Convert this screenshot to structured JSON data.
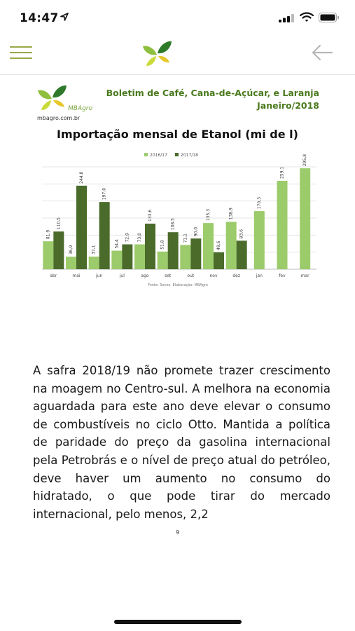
{
  "status_bar": {
    "time": "14:47"
  },
  "document": {
    "brand_name": "MBAgro",
    "brand_url": "mbagro.com.br",
    "title_line1": "Boletim de Café, Cana-de-Açúcar, e Laranja",
    "title_line2": "Janeiro/2018",
    "chart_title": "Importação mensal de Etanol (mi de l)",
    "source_note": "Fonte: Secex. Elaboração: MBAgro",
    "body_text": "A safra 2018/19 não promete trazer crescimento na moagem no Centro-sul. A melhora na economia aguardada para este ano deve elevar o consumo de combustíveis no ciclo Otto. Mantida a política de paridade do preço da gasolina internacional pela Petrobrás e o nível de preço atual do petróleo, deve haver um aumento no consumo do hidratado, o que pode tirar do mercado internacional, pelo menos, 2,2",
    "page_number": "9"
  },
  "colors": {
    "light_green": "#9ccb6b",
    "dark_green": "#4a6b2a",
    "title_green": "#4a7a1e"
  },
  "chart_data": {
    "type": "bar",
    "title": "Importação mensal de Etanol (mi de l)",
    "categories": [
      "abr",
      "mai",
      "jun",
      "jul",
      "ago",
      "set",
      "out",
      "nov",
      "dez",
      "jan",
      "fev",
      "mar"
    ],
    "series": [
      {
        "name": "2016/17",
        "color": "#9ccb6b",
        "values": [
          81.9,
          36.9,
          37.1,
          54.4,
          73.0,
          51.8,
          71.1,
          135.3,
          138.9,
          170.3,
          259.1,
          295.8
        ],
        "labels": [
          "81,9",
          "36,9",
          "37,1",
          "54,4",
          "73,0",
          "51,8",
          "71,1",
          "135,3",
          "138,9",
          "170,3",
          "259,1",
          "295,8"
        ]
      },
      {
        "name": "2017/18",
        "color": "#4a6b2a",
        "values": [
          110.5,
          244.8,
          197.0,
          72.9,
          133.6,
          108.5,
          90.0,
          49.6,
          83.6,
          null,
          null,
          null
        ],
        "labels": [
          "110,5",
          "244,8",
          "197,0",
          "72,9",
          "133,6",
          "108,5",
          "90,0",
          "49,6",
          "83,6",
          "",
          "",
          ""
        ]
      }
    ],
    "ylim": [
      0,
      300
    ],
    "grid": true,
    "legend_position": "top-center"
  }
}
